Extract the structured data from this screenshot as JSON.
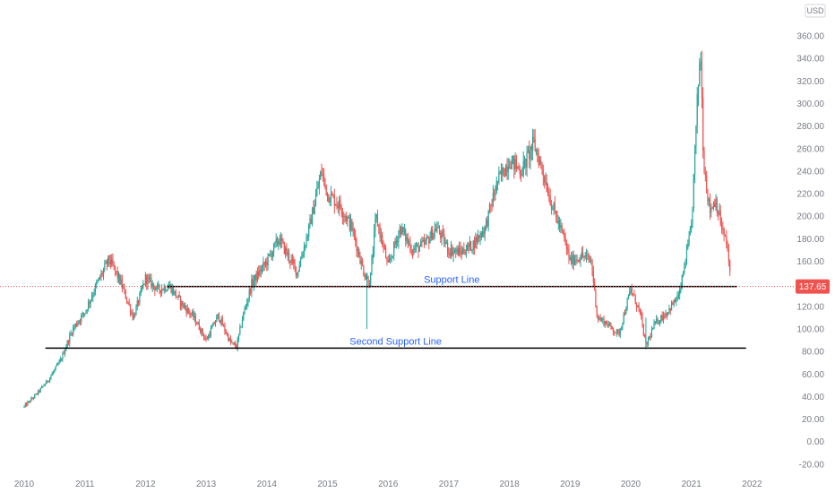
{
  "chart_data": {
    "type": "candlestick",
    "currency": "USD",
    "ylim": [
      -25,
      365
    ],
    "xlim": [
      2009.75,
      2022.15
    ],
    "y_ticks": [
      "360.00",
      "340.00",
      "320.00",
      "300.00",
      "280.00",
      "260.00",
      "240.00",
      "220.00",
      "200.00",
      "180.00",
      "160.00",
      "140.00",
      "120.00",
      "100.00",
      "80.00",
      "60.00",
      "40.00",
      "20.00",
      "0.00",
      "-20.00"
    ],
    "x_ticks": [
      "2010",
      "2011",
      "2012",
      "2013",
      "2014",
      "2015",
      "2016",
      "2017",
      "2018",
      "2019",
      "2020",
      "2021",
      "2022"
    ],
    "current_price": "137.65",
    "colors": {
      "up": "#26a69a",
      "down": "#ef5350",
      "line": "#000000",
      "annotation": "#2962ff",
      "axis_text": "#787b86"
    },
    "price_path": [
      [
        2010.0,
        31
      ],
      [
        2010.2,
        42
      ],
      [
        2010.4,
        55
      ],
      [
        2010.6,
        72
      ],
      [
        2010.8,
        100
      ],
      [
        2011.0,
        115
      ],
      [
        2011.2,
        140
      ],
      [
        2011.4,
        162
      ],
      [
        2011.6,
        140
      ],
      [
        2011.8,
        110
      ],
      [
        2012.0,
        145
      ],
      [
        2012.2,
        135
      ],
      [
        2012.4,
        138
      ],
      [
        2012.6,
        122
      ],
      [
        2012.8,
        110
      ],
      [
        2013.0,
        90
      ],
      [
        2013.2,
        112
      ],
      [
        2013.4,
        88
      ],
      [
        2013.5,
        84
      ],
      [
        2013.6,
        110
      ],
      [
        2013.75,
        140
      ],
      [
        2014.0,
        160
      ],
      [
        2014.2,
        180
      ],
      [
        2014.5,
        150
      ],
      [
        2014.7,
        190
      ],
      [
        2014.9,
        240
      ],
      [
        2015.0,
        220
      ],
      [
        2015.2,
        210
      ],
      [
        2015.4,
        190
      ],
      [
        2015.6,
        150
      ],
      [
        2015.7,
        140
      ],
      [
        2015.8,
        200
      ],
      [
        2016.0,
        155
      ],
      [
        2016.2,
        190
      ],
      [
        2016.4,
        170
      ],
      [
        2016.6,
        175
      ],
      [
        2016.8,
        190
      ],
      [
        2017.0,
        170
      ],
      [
        2017.2,
        168
      ],
      [
        2017.4,
        175
      ],
      [
        2017.6,
        190
      ],
      [
        2017.8,
        230
      ],
      [
        2018.0,
        250
      ],
      [
        2018.2,
        240
      ],
      [
        2018.4,
        265
      ],
      [
        2018.55,
        240
      ],
      [
        2018.7,
        210
      ],
      [
        2018.9,
        180
      ],
      [
        2019.0,
        160
      ],
      [
        2019.2,
        165
      ],
      [
        2019.35,
        160
      ],
      [
        2019.45,
        110
      ],
      [
        2019.6,
        105
      ],
      [
        2019.8,
        95
      ],
      [
        2020.0,
        135
      ],
      [
        2020.15,
        115
      ],
      [
        2020.25,
        85
      ],
      [
        2020.4,
        105
      ],
      [
        2020.6,
        115
      ],
      [
        2020.8,
        130
      ],
      [
        2021.0,
        190
      ],
      [
        2021.1,
        305
      ],
      [
        2021.15,
        350
      ],
      [
        2021.2,
        250
      ],
      [
        2021.3,
        205
      ],
      [
        2021.4,
        215
      ],
      [
        2021.5,
        190
      ],
      [
        2021.6,
        170
      ],
      [
        2021.65,
        137.65
      ]
    ],
    "horizontal_lines": [
      {
        "label": "Support Line",
        "y": 137.65,
        "x_start": 2012.35,
        "x_end": 2021.75
      },
      {
        "label": "Second Support Line",
        "y": 83,
        "x_start": 2010.35,
        "x_end": 2021.9
      }
    ]
  }
}
